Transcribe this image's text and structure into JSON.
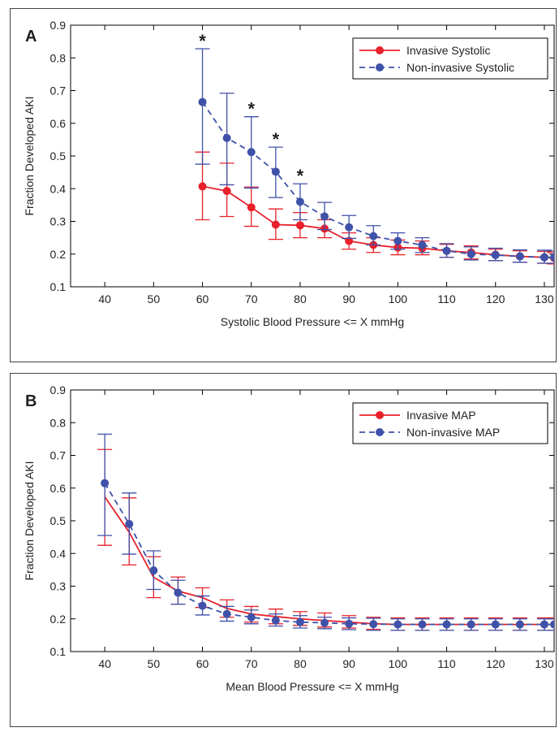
{
  "chart_data": [
    {
      "type": "line",
      "panel_label": "A",
      "xlabel": "Systolic Blood Pressure <= X mmHg",
      "ylabel": "Fraction Developed AKI",
      "xlim": [
        33,
        132
      ],
      "ylim": [
        0.1,
        0.9
      ],
      "xticks": [
        40,
        50,
        60,
        70,
        80,
        90,
        100,
        110,
        120,
        130
      ],
      "yticks": [
        0.1,
        0.2,
        0.3,
        0.4,
        0.5,
        0.6,
        0.7,
        0.8,
        0.9
      ],
      "legend_position": "top-right",
      "significance_marker": "*",
      "significant_x": [
        60,
        70,
        75,
        80
      ],
      "series": [
        {
          "name": "Invasive Systolic",
          "color": "#e8202a",
          "dash": "solid",
          "x": [
            60,
            65,
            70,
            75,
            80,
            85,
            90,
            95,
            100,
            105,
            110,
            115,
            120,
            125,
            130,
            132
          ],
          "y": [
            0.407,
            0.393,
            0.343,
            0.29,
            0.288,
            0.278,
            0.24,
            0.228,
            0.22,
            0.218,
            0.21,
            0.205,
            0.198,
            0.193,
            0.19,
            0.188
          ],
          "err_low": [
            0.305,
            0.315,
            0.285,
            0.245,
            0.25,
            0.25,
            0.215,
            0.205,
            0.198,
            0.198,
            0.19,
            0.185,
            0.18,
            0.175,
            0.172,
            0.17
          ],
          "err_high": [
            0.512,
            0.478,
            0.405,
            0.338,
            0.327,
            0.305,
            0.265,
            0.25,
            0.243,
            0.24,
            0.23,
            0.225,
            0.215,
            0.21,
            0.208,
            0.205
          ],
          "markers": true
        },
        {
          "name": "Non-invasive Systolic",
          "color": "#3f51a8",
          "dash": "dashed",
          "x": [
            60,
            65,
            70,
            75,
            80,
            85,
            90,
            95,
            100,
            105,
            110,
            115,
            120,
            125,
            130,
            132
          ],
          "y": [
            0.665,
            0.555,
            0.512,
            0.452,
            0.36,
            0.315,
            0.282,
            0.255,
            0.24,
            0.228,
            0.21,
            0.2,
            0.197,
            0.193,
            0.19,
            0.19
          ],
          "err_low": [
            0.475,
            0.412,
            0.402,
            0.373,
            0.305,
            0.275,
            0.248,
            0.228,
            0.215,
            0.205,
            0.19,
            0.182,
            0.18,
            0.175,
            0.172,
            0.172
          ],
          "err_high": [
            0.828,
            0.692,
            0.62,
            0.527,
            0.415,
            0.358,
            0.318,
            0.287,
            0.265,
            0.25,
            0.232,
            0.222,
            0.218,
            0.213,
            0.212,
            0.21
          ],
          "markers": true
        }
      ]
    },
    {
      "type": "line",
      "panel_label": "B",
      "xlabel": "Mean Blood Pressure <= X mmHg",
      "ylabel": "Fraction Developed AKI",
      "xlim": [
        33,
        132
      ],
      "ylim": [
        0.1,
        0.9
      ],
      "xticks": [
        40,
        50,
        60,
        70,
        80,
        90,
        100,
        110,
        120,
        130
      ],
      "yticks": [
        0.1,
        0.2,
        0.3,
        0.4,
        0.5,
        0.6,
        0.7,
        0.8,
        0.9
      ],
      "legend_position": "top-right",
      "series": [
        {
          "name": "Invasive MAP",
          "color": "#e8202a",
          "dash": "solid",
          "x": [
            40,
            45,
            50,
            55,
            60,
            65,
            70,
            75,
            80,
            85,
            90,
            95,
            100,
            105,
            110,
            115,
            120,
            125,
            130,
            132
          ],
          "y": [
            0.573,
            0.465,
            0.327,
            0.285,
            0.265,
            0.232,
            0.215,
            0.207,
            0.2,
            0.195,
            0.19,
            0.185,
            0.183,
            0.183,
            0.183,
            0.183,
            0.183,
            0.183,
            0.183,
            0.183
          ],
          "err_low": [
            0.425,
            0.365,
            0.265,
            0.245,
            0.235,
            0.205,
            0.19,
            0.185,
            0.18,
            0.175,
            0.172,
            0.168,
            0.165,
            0.165,
            0.165,
            0.165,
            0.165,
            0.165,
            0.165,
            0.165
          ],
          "err_high": [
            0.718,
            0.57,
            0.39,
            0.328,
            0.295,
            0.258,
            0.238,
            0.23,
            0.222,
            0.218,
            0.21,
            0.205,
            0.203,
            0.203,
            0.203,
            0.203,
            0.203,
            0.203,
            0.203,
            0.203
          ],
          "markers": false
        },
        {
          "name": "Non-invasive MAP",
          "color": "#3f51a8",
          "dash": "dashed",
          "x": [
            40,
            45,
            50,
            55,
            60,
            65,
            70,
            75,
            80,
            85,
            90,
            95,
            100,
            105,
            110,
            115,
            120,
            125,
            130,
            132
          ],
          "y": [
            0.615,
            0.49,
            0.348,
            0.28,
            0.24,
            0.215,
            0.205,
            0.195,
            0.19,
            0.188,
            0.185,
            0.184,
            0.183,
            0.183,
            0.183,
            0.183,
            0.183,
            0.183,
            0.183,
            0.183
          ],
          "err_low": [
            0.455,
            0.398,
            0.29,
            0.245,
            0.212,
            0.193,
            0.185,
            0.178,
            0.172,
            0.17,
            0.167,
            0.165,
            0.165,
            0.165,
            0.165,
            0.165,
            0.165,
            0.165,
            0.165,
            0.165
          ],
          "err_high": [
            0.765,
            0.585,
            0.408,
            0.318,
            0.27,
            0.238,
            0.227,
            0.215,
            0.21,
            0.205,
            0.203,
            0.202,
            0.2,
            0.2,
            0.2,
            0.2,
            0.2,
            0.2,
            0.2,
            0.2
          ],
          "markers": true
        }
      ]
    }
  ]
}
